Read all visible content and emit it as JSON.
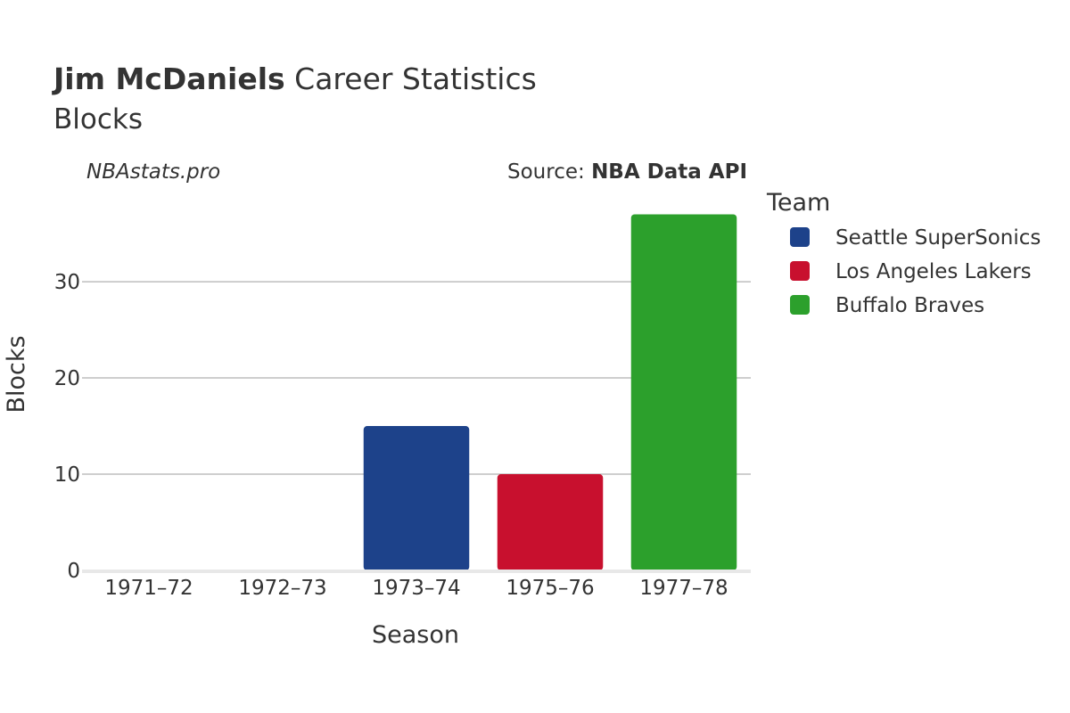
{
  "header": {
    "title_bold": "Jim McDaniels",
    "title_rest": " Career Statistics",
    "subtitle": "Blocks"
  },
  "credit": "NBAstats.pro",
  "source": {
    "prefix": "Source: ",
    "name": "NBA Data API"
  },
  "colors": {
    "Seattle SuperSonics": "#1d428a",
    "Los Angeles Lakers": "#c8102e",
    "Buffalo Braves": "#2ca02c"
  },
  "chart_data": {
    "type": "bar",
    "xlabel": "Season",
    "ylabel": "Blocks",
    "categories": [
      "1971–72",
      "1972–73",
      "1973–74",
      "1975–76",
      "1977–78"
    ],
    "values": [
      0,
      0,
      15,
      10,
      37
    ],
    "teams": [
      null,
      null,
      "Seattle SuperSonics",
      "Los Angeles Lakers",
      "Buffalo Braves"
    ],
    "ylim": [
      0,
      38.9
    ],
    "yticks": [
      0,
      10,
      20,
      30
    ],
    "grid": true,
    "legend_title": "Team",
    "legend_position": "right",
    "legend": [
      "Seattle SuperSonics",
      "Los Angeles Lakers",
      "Buffalo Braves"
    ]
  }
}
